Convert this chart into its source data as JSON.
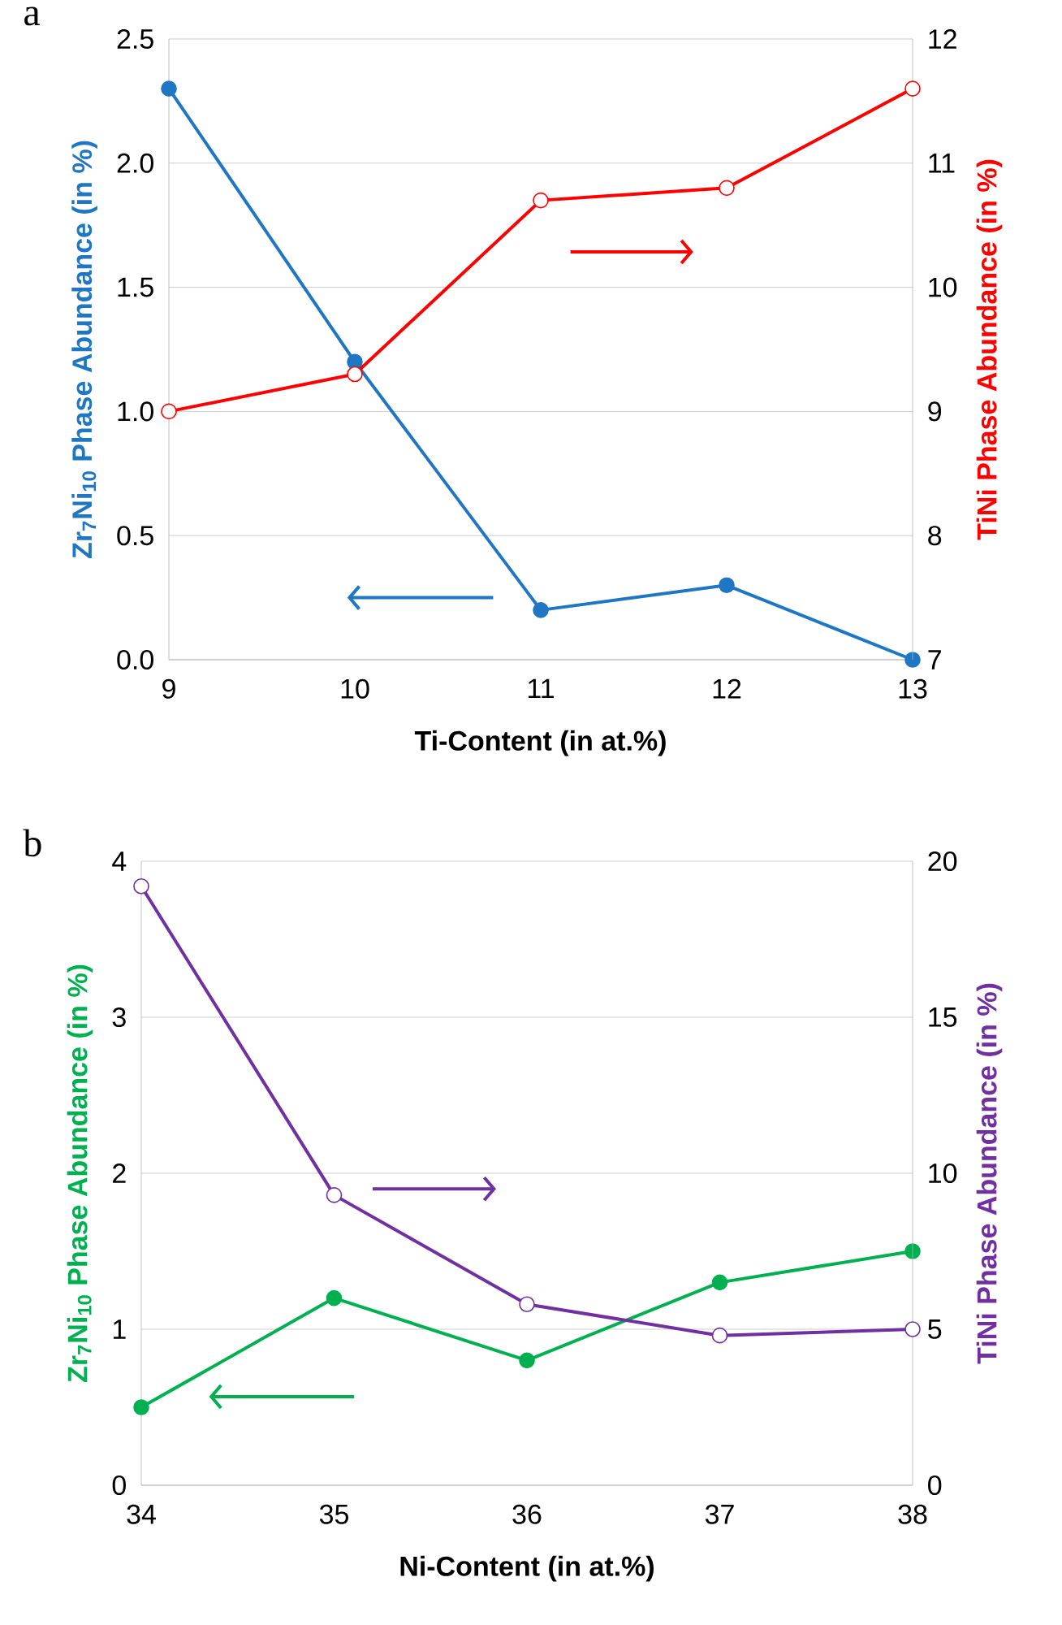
{
  "chart_data": [
    {
      "type": "line",
      "title": "a",
      "xlabel": "Ti-Content (in at.%)",
      "ylabel": "Zr$_{7}$Ni$_{10}$ Phase Abundance (in %)",
      "y2label": "TiNi Phase Abundance (in %)",
      "x": [
        9,
        10,
        11,
        12,
        13
      ],
      "xlim": [
        9,
        13
      ],
      "xticks": [
        9,
        10,
        11,
        12,
        13
      ],
      "ylim": [
        0,
        2.5
      ],
      "yticks": [
        {
          "value": 0,
          "label": "0.0"
        },
        {
          "value": 0.5,
          "label": "0.5"
        },
        {
          "value": 1,
          "label": "1.0"
        },
        {
          "value": 1.5,
          "label": "1.5"
        },
        {
          "value": 2,
          "label": "2.0"
        },
        {
          "value": 2.5,
          "label": "2.5"
        }
      ],
      "y2lim": [
        7,
        12
      ],
      "y2ticks": [
        7,
        8,
        9,
        10,
        11,
        12
      ],
      "grid": "y",
      "marker": "circle",
      "line_style": "solid",
      "series": [
        {
          "color": "#1f77c4",
          "values": [
            2.3,
            1.2,
            0.2,
            0.3,
            0.0
          ]
        },
        {
          "color": "#ff0000",
          "axis": "y2",
          "values": [
            9.0,
            9.3,
            10.7,
            10.8,
            11.6
          ]
        }
      ]
    },
    {
      "type": "line",
      "title": "b",
      "xlabel": "Ni-Content (in at.%)",
      "ylabel": "Zr$_{7}$Ni$_{10}$ Phase Abundance (in %)",
      "y2label": "TiNi Phase Abundance (in %)",
      "x": [
        34,
        35,
        36,
        37,
        38
      ],
      "xlim": [
        34,
        38
      ],
      "xticks": [
        34,
        35,
        36,
        37,
        38
      ],
      "ylim": [
        0,
        4
      ],
      "yticks": [
        0,
        1,
        2,
        3,
        4
      ],
      "y2lim": [
        0,
        20
      ],
      "y2ticks": [
        0,
        5,
        10,
        15,
        20
      ],
      "grid": "y",
      "marker": "circle",
      "line_style": "solid",
      "series": [
        {
          "color": "#00b050",
          "values": [
            0.5,
            1.2,
            0.8,
            1.3,
            1.5
          ]
        },
        {
          "color": "#7030a0",
          "axis": "y2",
          "values": [
            19.2,
            9.3,
            5.8,
            4.8,
            5.0
          ]
        }
      ]
    }
  ]
}
